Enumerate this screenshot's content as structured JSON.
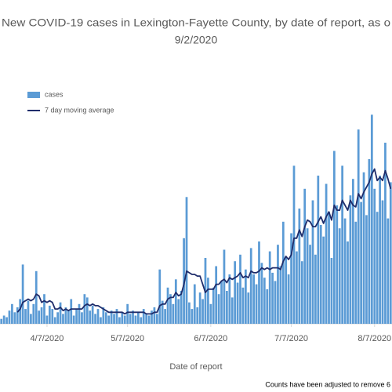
{
  "chart_data": {
    "type": "bar",
    "title": "New COVID-19 cases in Lexington-Fayette County, by date of report, as o",
    "subtitle": "9/2/2020",
    "x_label": "Date of report",
    "note": "Counts have been adjusted to remove 6",
    "categories": [
      null,
      null,
      null,
      null,
      null,
      null,
      null,
      null,
      null,
      null,
      null,
      null,
      null,
      null,
      null,
      null,
      null,
      "4/7/2020",
      null,
      null,
      null,
      null,
      null,
      null,
      null,
      null,
      null,
      null,
      null,
      null,
      null,
      null,
      null,
      null,
      null,
      null,
      null,
      null,
      null,
      null,
      null,
      null,
      null,
      null,
      null,
      null,
      null,
      "5/7/2020",
      null,
      null,
      null,
      null,
      null,
      null,
      null,
      null,
      null,
      null,
      null,
      null,
      null,
      null,
      null,
      null,
      null,
      null,
      null,
      null,
      null,
      null,
      null,
      null,
      null,
      null,
      null,
      null,
      null,
      null,
      "6/7/2020",
      null,
      null,
      null,
      null,
      null,
      null,
      null,
      null,
      null,
      null,
      null,
      null,
      null,
      null,
      null,
      null,
      null,
      null,
      null,
      null,
      null,
      null,
      null,
      null,
      null,
      null,
      null,
      null,
      null,
      "7/7/2020",
      null,
      null,
      null,
      null,
      null,
      null,
      null,
      null,
      null,
      null,
      null,
      null,
      null,
      null,
      null,
      null,
      null,
      null,
      null,
      null,
      null,
      null,
      null,
      null,
      null,
      null,
      null,
      null,
      null,
      null,
      "8/7/2020",
      null,
      null,
      null,
      null,
      null,
      null
    ],
    "series": [
      {
        "name": "cases",
        "color": "#5b9bd5",
        "type": "bar",
        "values": [
          3,
          5,
          4,
          8,
          12,
          7,
          10,
          15,
          36,
          9,
          14,
          6,
          12,
          32,
          8,
          10,
          18,
          5,
          11,
          9,
          4,
          7,
          13,
          6,
          10,
          8,
          15,
          5,
          9,
          12,
          7,
          18,
          16,
          8,
          11,
          6,
          9,
          4,
          10,
          7,
          5,
          8,
          6,
          9,
          4,
          7,
          5,
          12,
          6,
          8,
          5,
          7,
          4,
          9,
          6,
          5,
          8,
          10,
          6,
          33,
          14,
          9,
          22,
          18,
          12,
          27,
          15,
          20,
          52,
          77,
          13,
          9,
          24,
          10,
          19,
          15,
          40,
          28,
          12,
          22,
          35,
          18,
          26,
          45,
          20,
          30,
          16,
          38,
          25,
          42,
          22,
          33,
          19,
          46,
          30,
          24,
          50,
          37,
          28,
          21,
          44,
          31,
          26,
          48,
          35,
          62,
          40,
          30,
          55,
          96,
          44,
          70,
          38,
          82,
          58,
          48,
          75,
          42,
          90,
          60,
          53,
          85,
          68,
          40,
          105,
          72,
          58,
          96,
          64,
          50,
          78,
          88,
          62,
          118,
          74,
          92,
          66,
          100,
          127,
          82,
          68,
          90,
          75,
          110,
          64,
          86
        ]
      },
      {
        "name": "7 day moving average",
        "color": "#1f2d6b",
        "type": "line",
        "values": [
          null,
          null,
          null,
          null,
          null,
          null,
          7,
          9,
          13,
          14,
          15,
          14,
          15,
          18,
          17,
          13,
          14,
          13,
          14,
          13,
          9,
          9,
          10,
          8,
          9,
          8,
          9,
          9,
          9,
          9,
          9,
          11,
          12,
          11,
          12,
          11,
          11,
          10,
          9,
          8,
          7,
          7,
          7,
          7,
          7,
          7,
          6,
          7,
          7,
          7,
          7,
          7,
          7,
          7,
          6,
          6,
          6,
          7,
          7,
          11,
          12,
          12,
          15,
          16,
          16,
          19,
          17,
          18,
          24,
          32,
          31,
          30,
          30,
          29,
          29,
          24,
          19,
          21,
          21,
          21,
          24,
          24,
          26,
          27,
          25,
          28,
          27,
          28,
          29,
          31,
          28,
          29,
          28,
          32,
          31,
          31,
          32,
          34,
          33,
          34,
          33,
          34,
          34,
          34,
          33,
          38,
          41,
          39,
          42,
          52,
          52,
          57,
          53,
          59,
          63,
          62,
          59,
          59,
          62,
          65,
          61,
          65,
          68,
          63,
          72,
          69,
          69,
          75,
          72,
          69,
          75,
          72,
          71,
          79,
          76,
          80,
          83,
          86,
          91,
          94,
          87,
          89,
          87,
          93,
          88,
          82
        ]
      }
    ],
    "ylim": [
      0,
      130
    ],
    "legend": "upper left"
  }
}
